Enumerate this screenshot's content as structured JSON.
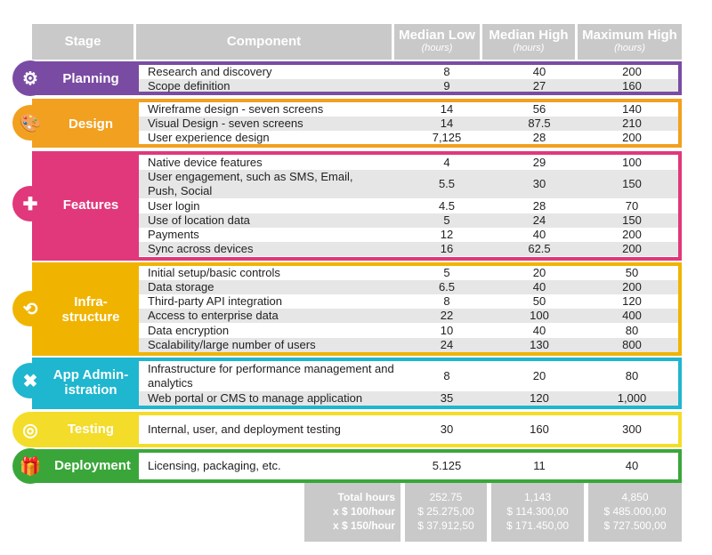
{
  "header": {
    "stage": "Stage",
    "component": "Component",
    "median_low": "Median Low",
    "median_high": "Median High",
    "maximum_high": "Maximum High",
    "unit": "(hours)"
  },
  "stages": [
    {
      "label": "Planning",
      "color": "#7a4ba3",
      "icon": "brain-gears-icon",
      "rows": [
        {
          "component": "Research and discovery",
          "low": "8",
          "high": "40",
          "max": "200"
        },
        {
          "component": "Scope definition",
          "low": "9",
          "high": "27",
          "max": "160"
        }
      ]
    },
    {
      "label": "Design",
      "color": "#f2a01f",
      "icon": "palette-icon",
      "rows": [
        {
          "component": "Wireframe design - seven screens",
          "low": "14",
          "high": "56",
          "max": "140"
        },
        {
          "component": "Visual Design - seven screens",
          "low": "14",
          "high": "87.5",
          "max": "210"
        },
        {
          "component": "User experience design",
          "low": "7,125",
          "high": "28",
          "max": "200"
        }
      ]
    },
    {
      "label": "Features",
      "color": "#e0387a",
      "icon": "puzzle-icon",
      "rows": [
        {
          "component": "Native device features",
          "low": "4",
          "high": "29",
          "max": "100"
        },
        {
          "component": "User engagement, such as SMS, Email, Push, Social",
          "low": "5.5",
          "high": "30",
          "max": "150"
        },
        {
          "component": "User login",
          "low": "4.5",
          "high": "28",
          "max": "70"
        },
        {
          "component": "Use of location data",
          "low": "5",
          "high": "24",
          "max": "150"
        },
        {
          "component": "Payments",
          "low": "12",
          "high": "40",
          "max": "200"
        },
        {
          "component": "Sync across devices",
          "low": "16",
          "high": "62.5",
          "max": "200"
        }
      ]
    },
    {
      "label": "Infra-structure",
      "label_line1": "Infra-",
      "label_line2": "structure",
      "color": "#f0b400",
      "icon": "network-icon",
      "rows": [
        {
          "component": "Initial setup/basic controls",
          "low": "5",
          "high": "20",
          "max": "50"
        },
        {
          "component": "Data storage",
          "low": "6.5",
          "high": "40",
          "max": "200"
        },
        {
          "component": "Third-party API integration",
          "low": "8",
          "high": "50",
          "max": "120"
        },
        {
          "component": "Access to enterprise data",
          "low": "22",
          "high": "100",
          "max": "400"
        },
        {
          "component": "Data encryption",
          "low": "10",
          "high": "40",
          "max": "80"
        },
        {
          "component": "Scalability/large number of users",
          "low": "24",
          "high": "130",
          "max": "800"
        }
      ]
    },
    {
      "label": "App Administration",
      "label_line1": "App Admin-",
      "label_line2": "istration",
      "color": "#1fb6cf",
      "icon": "tools-icon",
      "rows": [
        {
          "component": "Infrastructure for performance management and analytics",
          "low": "8",
          "high": "20",
          "max": "80"
        },
        {
          "component": "Web portal or CMS to manage application",
          "low": "35",
          "high": "120",
          "max": "1,000"
        }
      ]
    },
    {
      "label": "Testing",
      "color": "#f4dc2a",
      "icon": "target-icon",
      "rows": [
        {
          "component": "Internal, user, and deployment testing",
          "low": "30",
          "high": "160",
          "max": "300"
        }
      ]
    },
    {
      "label": "Deployment",
      "color": "#3aa63a",
      "icon": "gift-icon",
      "rows": [
        {
          "component": "Licensing, packaging, etc.",
          "low": "5.125",
          "high": "11",
          "max": "40"
        }
      ]
    }
  ],
  "totals": {
    "labels": [
      "Total hours",
      "x $ 100/hour",
      "x $ 150/hour"
    ],
    "low": [
      "252.75",
      "$ 25.275,00",
      "$ 37.912,50"
    ],
    "high": [
      "1,143",
      "$ 114.300,00",
      "$ 171.450,00"
    ],
    "max": [
      "4,850",
      "$ 485.000,00",
      "$ 727.500,00"
    ]
  }
}
